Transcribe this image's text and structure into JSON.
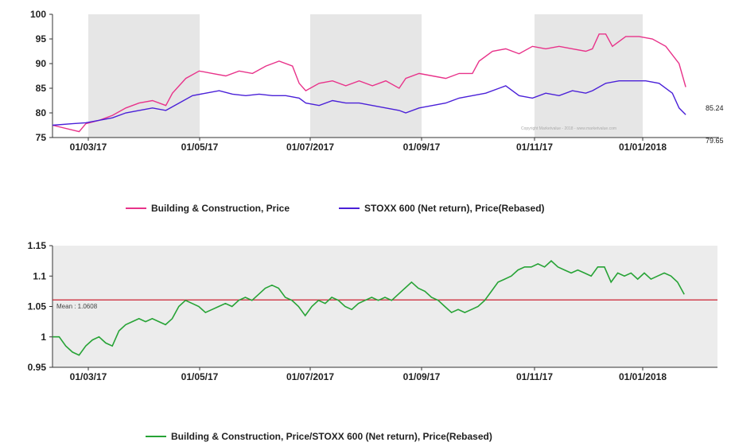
{
  "colors": {
    "building": "#e8338a",
    "stoxx": "#4a20d8",
    "ratio": "#27a336",
    "mean_line": "#cc2233",
    "band": "#e6e6e6"
  },
  "chart_data": [
    {
      "type": "line",
      "x_tick_labels": [
        "01/03/17",
        "01/05/17",
        "01/07/2017",
        "01/09/17",
        "01/11/17",
        "01/01/2018"
      ],
      "ylim": [
        75,
        100
      ],
      "y_ticks": [
        75,
        80,
        85,
        90,
        95,
        100
      ],
      "grid": false,
      "legend_position": "bottom",
      "watermark": "Copyright Marketvalue - 2018 - www.marketvalue.com",
      "series": [
        {
          "name": "Building & Construction, Price",
          "color_key": "building",
          "end_label": "85.24",
          "points": [
            [
              0,
              77.5
            ],
            [
              0.04,
              76.2
            ],
            [
              0.05,
              77.8
            ],
            [
              0.07,
              78.5
            ],
            [
              0.09,
              79.5
            ],
            [
              0.11,
              81
            ],
            [
              0.13,
              82
            ],
            [
              0.15,
              82.5
            ],
            [
              0.17,
              81.5
            ],
            [
              0.18,
              84
            ],
            [
              0.2,
              87
            ],
            [
              0.22,
              88.5
            ],
            [
              0.24,
              88
            ],
            [
              0.26,
              87.5
            ],
            [
              0.28,
              88.5
            ],
            [
              0.3,
              88
            ],
            [
              0.32,
              89.5
            ],
            [
              0.34,
              90.5
            ],
            [
              0.36,
              89.5
            ],
            [
              0.37,
              86
            ],
            [
              0.38,
              84.5
            ],
            [
              0.4,
              86
            ],
            [
              0.42,
              86.5
            ],
            [
              0.44,
              85.5
            ],
            [
              0.46,
              86.5
            ],
            [
              0.48,
              85.5
            ],
            [
              0.5,
              86.5
            ],
            [
              0.52,
              85
            ],
            [
              0.53,
              87
            ],
            [
              0.55,
              88
            ],
            [
              0.57,
              87.5
            ],
            [
              0.59,
              87
            ],
            [
              0.61,
              88
            ],
            [
              0.63,
              88
            ],
            [
              0.64,
              90.5
            ],
            [
              0.66,
              92.5
            ],
            [
              0.68,
              93
            ],
            [
              0.7,
              92
            ],
            [
              0.72,
              93.5
            ],
            [
              0.74,
              93
            ],
            [
              0.76,
              93.5
            ],
            [
              0.78,
              93
            ],
            [
              0.8,
              92.5
            ],
            [
              0.81,
              93
            ],
            [
              0.82,
              96
            ],
            [
              0.83,
              96
            ],
            [
              0.84,
              93.5
            ],
            [
              0.86,
              95.5
            ],
            [
              0.88,
              95.5
            ],
            [
              0.9,
              95
            ],
            [
              0.92,
              93.5
            ],
            [
              0.94,
              90
            ],
            [
              0.95,
              85.24
            ]
          ]
        },
        {
          "name": "STOXX 600 (Net return), Price(Rebased)",
          "color_key": "stoxx",
          "end_label": "79.65",
          "points": [
            [
              0,
              77.5
            ],
            [
              0.03,
              77.8
            ],
            [
              0.05,
              78
            ],
            [
              0.07,
              78.5
            ],
            [
              0.09,
              79
            ],
            [
              0.11,
              80
            ],
            [
              0.13,
              80.5
            ],
            [
              0.15,
              81
            ],
            [
              0.17,
              80.5
            ],
            [
              0.19,
              82
            ],
            [
              0.21,
              83.5
            ],
            [
              0.23,
              84
            ],
            [
              0.25,
              84.5
            ],
            [
              0.27,
              83.8
            ],
            [
              0.29,
              83.5
            ],
            [
              0.31,
              83.8
            ],
            [
              0.33,
              83.5
            ],
            [
              0.35,
              83.5
            ],
            [
              0.37,
              83
            ],
            [
              0.38,
              82
            ],
            [
              0.4,
              81.5
            ],
            [
              0.42,
              82.5
            ],
            [
              0.44,
              82
            ],
            [
              0.46,
              82
            ],
            [
              0.48,
              81.5
            ],
            [
              0.5,
              81
            ],
            [
              0.52,
              80.5
            ],
            [
              0.53,
              80
            ],
            [
              0.55,
              81
            ],
            [
              0.57,
              81.5
            ],
            [
              0.59,
              82
            ],
            [
              0.61,
              83
            ],
            [
              0.63,
              83.5
            ],
            [
              0.65,
              84
            ],
            [
              0.67,
              85
            ],
            [
              0.68,
              85.5
            ],
            [
              0.7,
              83.5
            ],
            [
              0.72,
              83
            ],
            [
              0.74,
              84
            ],
            [
              0.76,
              83.5
            ],
            [
              0.78,
              84.5
            ],
            [
              0.8,
              84
            ],
            [
              0.81,
              84.5
            ],
            [
              0.83,
              86
            ],
            [
              0.85,
              86.5
            ],
            [
              0.87,
              86.5
            ],
            [
              0.89,
              86.5
            ],
            [
              0.91,
              86
            ],
            [
              0.93,
              84
            ],
            [
              0.94,
              81
            ],
            [
              0.95,
              79.65
            ]
          ]
        }
      ]
    },
    {
      "type": "line",
      "x_tick_labels": [
        "01/03/17",
        "01/05/17",
        "01/07/2017",
        "01/09/17",
        "01/11/17",
        "01/01/2018"
      ],
      "ylim": [
        0.95,
        1.15
      ],
      "y_ticks": [
        0.95,
        1,
        1.05,
        1.1,
        1.15
      ],
      "grid": false,
      "legend_position": "bottom",
      "mean": 1.0608,
      "mean_label": "Mean : 1.0608",
      "series": [
        {
          "name": "Building & Construction, Price/STOXX 600 (Net return), Price(Rebased)",
          "color_key": "ratio",
          "points": [
            [
              0,
              1.0
            ],
            [
              0.01,
              1.0
            ],
            [
              0.02,
              0.985
            ],
            [
              0.03,
              0.975
            ],
            [
              0.04,
              0.97
            ],
            [
              0.05,
              0.985
            ],
            [
              0.06,
              0.995
            ],
            [
              0.07,
              1.0
            ],
            [
              0.08,
              0.99
            ],
            [
              0.09,
              0.985
            ],
            [
              0.1,
              1.01
            ],
            [
              0.11,
              1.02
            ],
            [
              0.12,
              1.025
            ],
            [
              0.13,
              1.03
            ],
            [
              0.14,
              1.025
            ],
            [
              0.15,
              1.03
            ],
            [
              0.16,
              1.025
            ],
            [
              0.17,
              1.02
            ],
            [
              0.18,
              1.03
            ],
            [
              0.19,
              1.05
            ],
            [
              0.2,
              1.06
            ],
            [
              0.21,
              1.055
            ],
            [
              0.22,
              1.05
            ],
            [
              0.23,
              1.04
            ],
            [
              0.24,
              1.045
            ],
            [
              0.25,
              1.05
            ],
            [
              0.26,
              1.055
            ],
            [
              0.27,
              1.05
            ],
            [
              0.28,
              1.06
            ],
            [
              0.29,
              1.065
            ],
            [
              0.3,
              1.06
            ],
            [
              0.31,
              1.07
            ],
            [
              0.32,
              1.08
            ],
            [
              0.33,
              1.085
            ],
            [
              0.34,
              1.08
            ],
            [
              0.35,
              1.065
            ],
            [
              0.36,
              1.06
            ],
            [
              0.37,
              1.05
            ],
            [
              0.38,
              1.035
            ],
            [
              0.39,
              1.05
            ],
            [
              0.4,
              1.06
            ],
            [
              0.41,
              1.055
            ],
            [
              0.42,
              1.065
            ],
            [
              0.43,
              1.06
            ],
            [
              0.44,
              1.05
            ],
            [
              0.45,
              1.045
            ],
            [
              0.46,
              1.055
            ],
            [
              0.47,
              1.06
            ],
            [
              0.48,
              1.065
            ],
            [
              0.49,
              1.06
            ],
            [
              0.5,
              1.065
            ],
            [
              0.51,
              1.06
            ],
            [
              0.52,
              1.07
            ],
            [
              0.53,
              1.08
            ],
            [
              0.54,
              1.09
            ],
            [
              0.55,
              1.08
            ],
            [
              0.56,
              1.075
            ],
            [
              0.57,
              1.065
            ],
            [
              0.58,
              1.06
            ],
            [
              0.59,
              1.05
            ],
            [
              0.6,
              1.04
            ],
            [
              0.61,
              1.045
            ],
            [
              0.62,
              1.04
            ],
            [
              0.63,
              1.045
            ],
            [
              0.64,
              1.05
            ],
            [
              0.65,
              1.06
            ],
            [
              0.66,
              1.075
            ],
            [
              0.67,
              1.09
            ],
            [
              0.68,
              1.095
            ],
            [
              0.69,
              1.1
            ],
            [
              0.7,
              1.11
            ],
            [
              0.71,
              1.115
            ],
            [
              0.72,
              1.115
            ],
            [
              0.73,
              1.12
            ],
            [
              0.74,
              1.115
            ],
            [
              0.75,
              1.125
            ],
            [
              0.76,
              1.115
            ],
            [
              0.77,
              1.11
            ],
            [
              0.78,
              1.105
            ],
            [
              0.79,
              1.11
            ],
            [
              0.8,
              1.105
            ],
            [
              0.81,
              1.1
            ],
            [
              0.82,
              1.115
            ],
            [
              0.83,
              1.115
            ],
            [
              0.84,
              1.09
            ],
            [
              0.85,
              1.105
            ],
            [
              0.86,
              1.1
            ],
            [
              0.87,
              1.105
            ],
            [
              0.88,
              1.095
            ],
            [
              0.89,
              1.105
            ],
            [
              0.9,
              1.095
            ],
            [
              0.91,
              1.1
            ],
            [
              0.92,
              1.105
            ],
            [
              0.93,
              1.1
            ],
            [
              0.94,
              1.09
            ],
            [
              0.95,
              1.07
            ]
          ]
        }
      ]
    }
  ]
}
